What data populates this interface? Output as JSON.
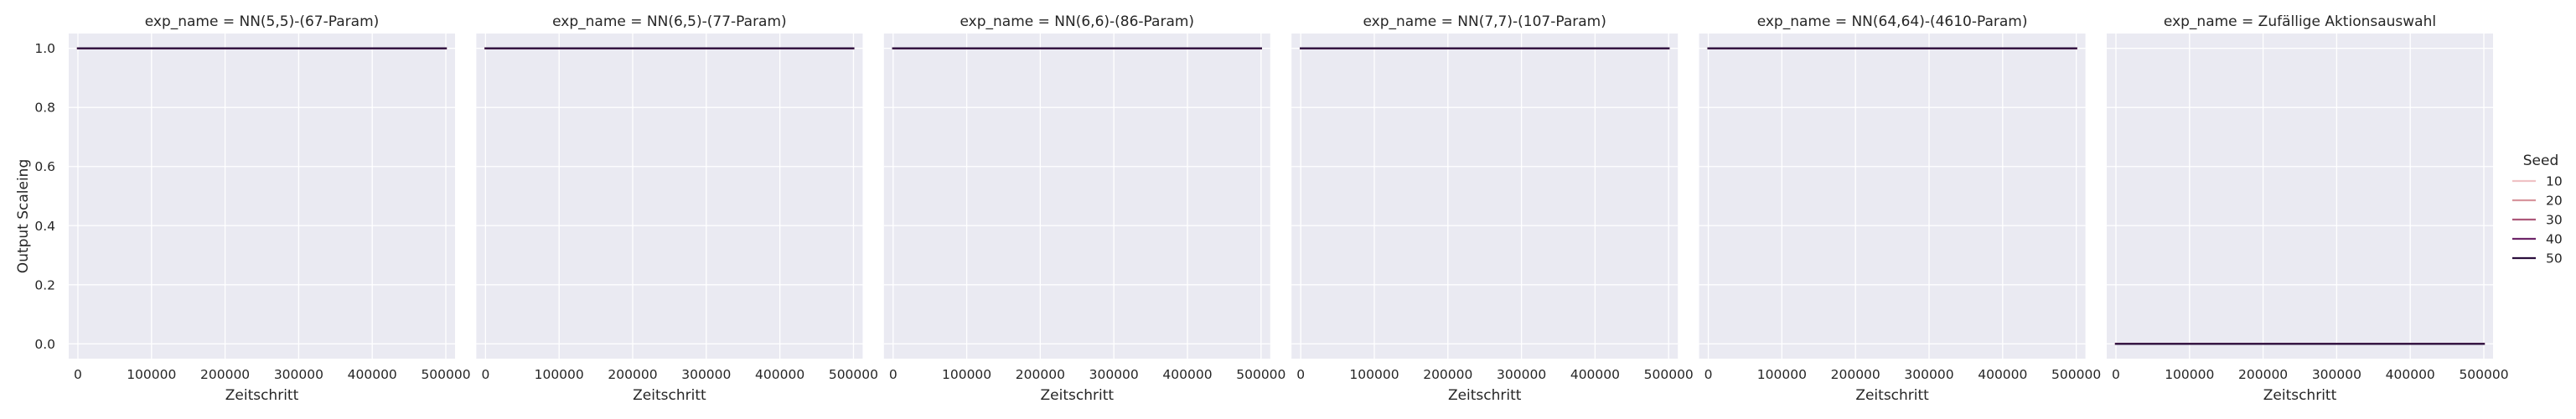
{
  "chart_data": {
    "type": "line",
    "ylabel": "Output Scaleing",
    "xlabel": "Zeitschritt",
    "xlim": [
      -12500,
      512500
    ],
    "ylim": [
      -0.05,
      1.05
    ],
    "x_ticks": [
      0,
      100000,
      200000,
      300000,
      400000,
      500000
    ],
    "x_tick_labels": [
      "0",
      "100000",
      "200000",
      "300000",
      "400000",
      "500000"
    ],
    "y_ticks": [
      0,
      0.2,
      0.4,
      0.6,
      0.8,
      1
    ],
    "y_tick_labels": [
      "0.0",
      "0.2",
      "0.4",
      "0.6",
      "0.8",
      "1.0"
    ],
    "grid": true,
    "legend": {
      "title": "Seed",
      "placement": "right",
      "entries": [
        {
          "label": "10",
          "color": "#efc2c5"
        },
        {
          "label": "20",
          "color": "#d8959d"
        },
        {
          "label": "30",
          "color": "#ad587a"
        },
        {
          "label": "40",
          "color": "#6e2569"
        },
        {
          "label": "50",
          "color": "#2b0f3c"
        }
      ]
    },
    "panels": [
      {
        "title": "exp_name = NN(5,5)-(67-Param)",
        "series": [
          {
            "name": "10",
            "x": [
              0,
              500000
            ],
            "y": [
              1,
              1
            ]
          },
          {
            "name": "20",
            "x": [
              0,
              500000
            ],
            "y": [
              1,
              1
            ]
          },
          {
            "name": "30",
            "x": [
              0,
              500000
            ],
            "y": [
              1,
              1
            ]
          },
          {
            "name": "40",
            "x": [
              0,
              500000
            ],
            "y": [
              1,
              1
            ]
          },
          {
            "name": "50",
            "x": [
              0,
              500000
            ],
            "y": [
              1,
              1
            ]
          }
        ]
      },
      {
        "title": "exp_name = NN(6,5)-(77-Param)",
        "series": [
          {
            "name": "10",
            "x": [
              0,
              500000
            ],
            "y": [
              1,
              1
            ]
          },
          {
            "name": "20",
            "x": [
              0,
              500000
            ],
            "y": [
              1,
              1
            ]
          },
          {
            "name": "30",
            "x": [
              0,
              500000
            ],
            "y": [
              1,
              1
            ]
          },
          {
            "name": "40",
            "x": [
              0,
              500000
            ],
            "y": [
              1,
              1
            ]
          },
          {
            "name": "50",
            "x": [
              0,
              500000
            ],
            "y": [
              1,
              1
            ]
          }
        ]
      },
      {
        "title": "exp_name = NN(6,6)-(86-Param)",
        "series": [
          {
            "name": "10",
            "x": [
              0,
              500000
            ],
            "y": [
              1,
              1
            ]
          },
          {
            "name": "20",
            "x": [
              0,
              500000
            ],
            "y": [
              1,
              1
            ]
          },
          {
            "name": "30",
            "x": [
              0,
              500000
            ],
            "y": [
              1,
              1
            ]
          },
          {
            "name": "40",
            "x": [
              0,
              500000
            ],
            "y": [
              1,
              1
            ]
          },
          {
            "name": "50",
            "x": [
              0,
              500000
            ],
            "y": [
              1,
              1
            ]
          }
        ]
      },
      {
        "title": "exp_name = NN(7,7)-(107-Param)",
        "series": [
          {
            "name": "10",
            "x": [
              0,
              500000
            ],
            "y": [
              1,
              1
            ]
          },
          {
            "name": "20",
            "x": [
              0,
              500000
            ],
            "y": [
              1,
              1
            ]
          },
          {
            "name": "30",
            "x": [
              0,
              500000
            ],
            "y": [
              1,
              1
            ]
          },
          {
            "name": "40",
            "x": [
              0,
              500000
            ],
            "y": [
              1,
              1
            ]
          },
          {
            "name": "50",
            "x": [
              0,
              500000
            ],
            "y": [
              1,
              1
            ]
          }
        ]
      },
      {
        "title": "exp_name = NN(64,64)-(4610-Param)",
        "series": [
          {
            "name": "10",
            "x": [
              0,
              500000
            ],
            "y": [
              1,
              1
            ]
          },
          {
            "name": "20",
            "x": [
              0,
              500000
            ],
            "y": [
              1,
              1
            ]
          },
          {
            "name": "30",
            "x": [
              0,
              500000
            ],
            "y": [
              1,
              1
            ]
          },
          {
            "name": "40",
            "x": [
              0,
              500000
            ],
            "y": [
              1,
              1
            ]
          },
          {
            "name": "50",
            "x": [
              0,
              500000
            ],
            "y": [
              1,
              1
            ]
          }
        ]
      },
      {
        "title": "exp_name = Zufällige Aktionsauswahl",
        "series": [
          {
            "name": "10",
            "x": [
              0,
              500000
            ],
            "y": [
              0,
              0
            ]
          },
          {
            "name": "20",
            "x": [
              0,
              500000
            ],
            "y": [
              0,
              0
            ]
          },
          {
            "name": "30",
            "x": [
              0,
              500000
            ],
            "y": [
              0,
              0
            ]
          },
          {
            "name": "40",
            "x": [
              0,
              500000
            ],
            "y": [
              0,
              0
            ]
          },
          {
            "name": "50",
            "x": [
              0,
              500000
            ],
            "y": [
              0,
              0
            ]
          }
        ]
      }
    ]
  }
}
